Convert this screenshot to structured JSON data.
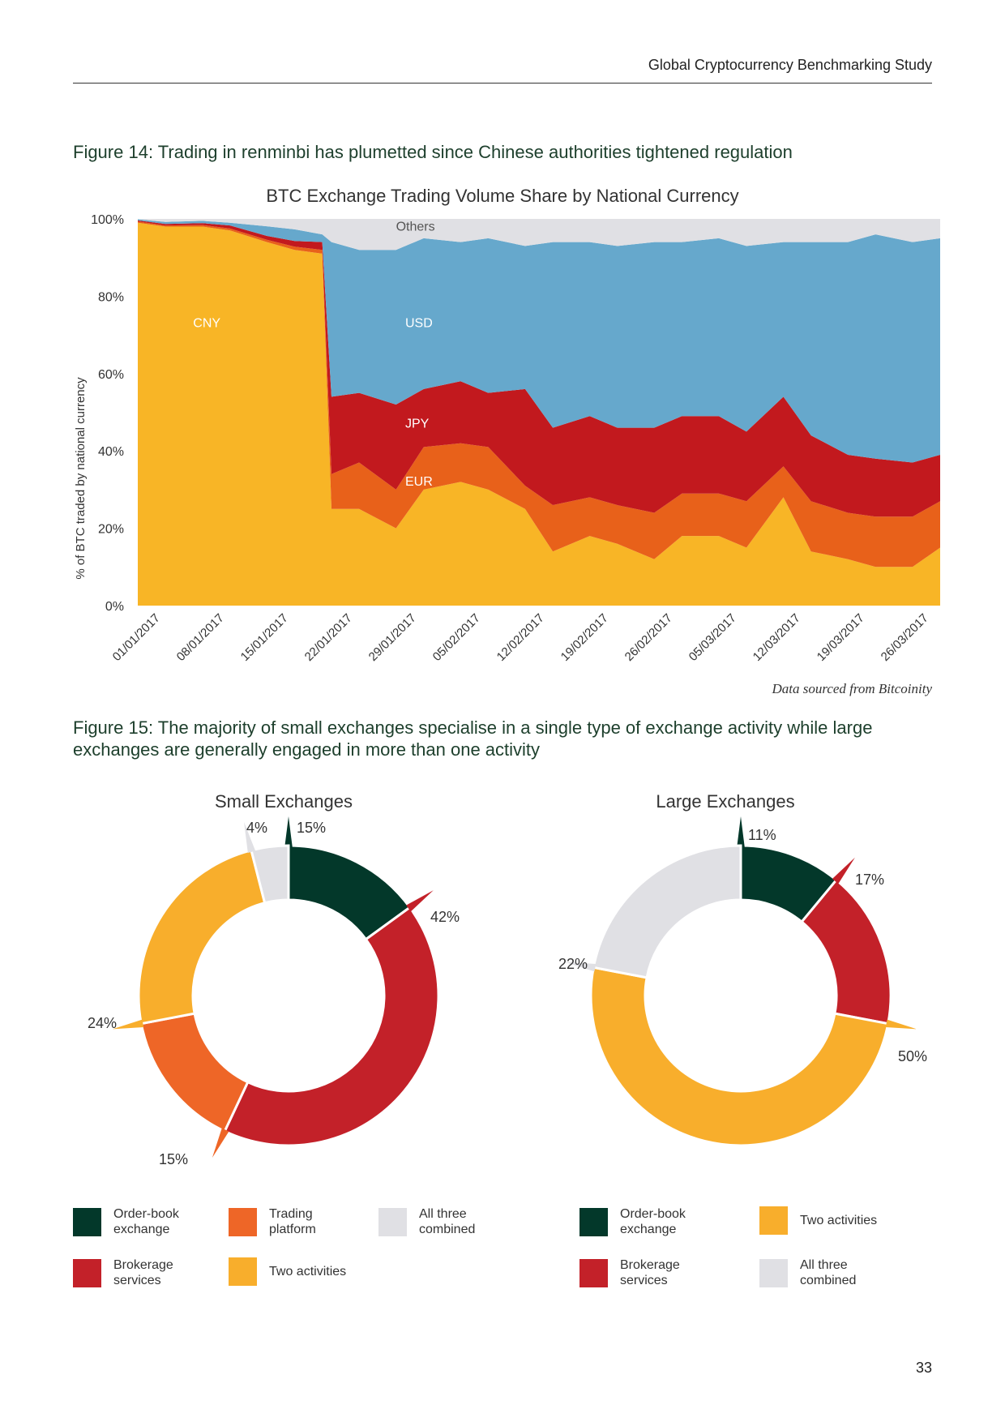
{
  "header": {
    "running_title": "Global Cryptocurrency Benchmarking Study"
  },
  "figure14": {
    "caption": "Figure 14: Trading in renminbi has plumetted since Chinese authorities tightened regulation",
    "source_note": "Data sourced from Bitcoinity"
  },
  "chart_data": [
    {
      "type": "area",
      "stacked": true,
      "title": "BTC Exchange Trading Volume Share by National Currency",
      "ylabel": "% of BTC traded by national currency",
      "xlabel": "",
      "ylim": [
        0,
        100
      ],
      "yticks": [
        "0%",
        "20%",
        "40%",
        "60%",
        "80%",
        "100%"
      ],
      "xticks": [
        "01/01/2017",
        "08/01/2017",
        "15/01/2017",
        "22/01/2017",
        "29/01/2017",
        "05/02/2017",
        "12/02/2017",
        "19/02/2017",
        "26/02/2017",
        "05/03/2017",
        "12/03/2017",
        "19/03/2017",
        "26/03/2017"
      ],
      "series_order": [
        "CNY",
        "EUR",
        "JPY",
        "USD",
        "Others"
      ],
      "colors": {
        "CNY": "#f8b526",
        "EUR": "#e8611a",
        "JPY": "#c2191e",
        "USD": "#66a8cc",
        "Others": "#e0e0e4"
      },
      "x": [
        0,
        3,
        7,
        10,
        14,
        17,
        20,
        21,
        24,
        28,
        31,
        35,
        38,
        42,
        45,
        49,
        52,
        56,
        59,
        63,
        66,
        70,
        73,
        77,
        80,
        84,
        87
      ],
      "series": [
        {
          "name": "CNY",
          "values": [
            99,
            98,
            98,
            97,
            94,
            92,
            91,
            25,
            25,
            20,
            30,
            32,
            30,
            25,
            14,
            18,
            16,
            12,
            18,
            18,
            15,
            28,
            14,
            12,
            10,
            10,
            15
          ]
        },
        {
          "name": "EUR",
          "values": [
            0.3,
            0.3,
            0.4,
            0.5,
            0.6,
            0.8,
            1,
            9,
            12,
            10,
            11,
            10,
            11,
            6,
            12,
            10,
            10,
            12,
            11,
            11,
            12,
            8,
            13,
            12,
            13,
            13,
            12
          ]
        },
        {
          "name": "JPY",
          "values": [
            0.3,
            0.4,
            0.5,
            0.8,
            1,
            1.5,
            2,
            20,
            18,
            22,
            15,
            16,
            14,
            25,
            20,
            21,
            20,
            22,
            20,
            20,
            18,
            18,
            17,
            15,
            15,
            14,
            12
          ]
        },
        {
          "name": "USD",
          "values": [
            0.3,
            0.5,
            0.6,
            0.7,
            2.5,
            3,
            2,
            40,
            37,
            40,
            39,
            36,
            40,
            37,
            48,
            45,
            47,
            48,
            45,
            46,
            48,
            40,
            50,
            55,
            58,
            57,
            56
          ]
        },
        {
          "name": "Others",
          "values": [
            0.1,
            0.8,
            0.5,
            1,
            1.9,
            2.7,
            4,
            6,
            8,
            8,
            5,
            6,
            5,
            7,
            6,
            6,
            7,
            6,
            6,
            5,
            7,
            6,
            6,
            6,
            4,
            6,
            5
          ]
        }
      ],
      "area_labels": [
        "Others",
        "CNY",
        "USD",
        "JPY",
        "EUR"
      ]
    },
    {
      "type": "pie",
      "variant": "donut",
      "title": "Small Exchanges",
      "categories": [
        "Order-book exchange",
        "Brokerage services",
        "Trading platform",
        "Two activities",
        "All three combined"
      ],
      "values": [
        15,
        42,
        15,
        24,
        4
      ],
      "value_labels": [
        "15%",
        "42%",
        "15%",
        "24%",
        "4%"
      ],
      "colors": [
        "#03382a",
        "#c32129",
        "#ee6627",
        "#f8ae2c",
        "#e0e0e4"
      ]
    },
    {
      "type": "pie",
      "variant": "donut",
      "title": "Large Exchanges",
      "categories": [
        "Order-book exchange",
        "Brokerage services",
        "Two activities",
        "All three combined"
      ],
      "values": [
        11,
        17,
        50,
        22
      ],
      "value_labels": [
        "11%",
        "17%",
        "50%",
        "22%"
      ],
      "colors": [
        "#03382a",
        "#c32129",
        "#f8ae2c",
        "#e0e0e4"
      ]
    }
  ],
  "figure15": {
    "caption_line1": "Figure 15: The majority of small exchanges specialise in a single type of exchange activity while large",
    "caption_line2": "exchanges are generally engaged in more than one activity",
    "small_legend": [
      {
        "label_line1": "Order-book",
        "label_line2": "exchange",
        "color": "#03382a"
      },
      {
        "label_line1": "Trading",
        "label_line2": "platform",
        "color": "#ee6627"
      },
      {
        "label_line1": "All three",
        "label_line2": "combined",
        "color": "#e0e0e4"
      },
      {
        "label_line1": "Brokerage",
        "label_line2": "services",
        "color": "#c32129"
      },
      {
        "label_line1": "Two activities",
        "label_line2": "",
        "color": "#f8ae2c"
      }
    ],
    "large_legend": [
      {
        "label_line1": "Order-book",
        "label_line2": "exchange",
        "color": "#03382a"
      },
      {
        "label_line1": "Two activities",
        "label_line2": "",
        "color": "#f8ae2c"
      },
      {
        "label_line1": "Brokerage",
        "label_line2": "services",
        "color": "#c32129"
      },
      {
        "label_line1": "All three",
        "label_line2": "combined",
        "color": "#e0e0e4"
      }
    ]
  },
  "footer": {
    "page_number": "33"
  }
}
